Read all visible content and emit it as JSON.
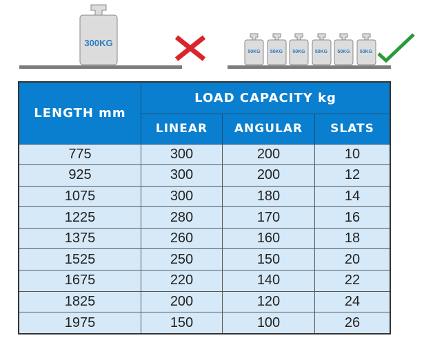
{
  "illustration": {
    "wrong": {
      "weight_label": "300KG",
      "mark": "cross-icon",
      "color": "#d9262a"
    },
    "right": {
      "weight_labels": [
        "50KG",
        "50KG",
        "50KG",
        "50KG",
        "50KG",
        "50KG"
      ],
      "mark": "check-icon",
      "color": "#2a9a3a"
    }
  },
  "table": {
    "header_bg": "#0a7fcf",
    "row_bg": "#d6e9f8",
    "length_header": "LENGTH mm",
    "group_header": "LOAD CAPACITY kg",
    "sub_headers": [
      "LINEAR",
      "ANGULAR",
      "SLATS"
    ],
    "rows": [
      [
        "775",
        "300",
        "200",
        "10"
      ],
      [
        "925",
        "300",
        "200",
        "12"
      ],
      [
        "1075",
        "300",
        "180",
        "14"
      ],
      [
        "1225",
        "280",
        "170",
        "16"
      ],
      [
        "1375",
        "260",
        "160",
        "18"
      ],
      [
        "1525",
        "250",
        "150",
        "20"
      ],
      [
        "1675",
        "220",
        "140",
        "22"
      ],
      [
        "1825",
        "200",
        "120",
        "24"
      ],
      [
        "1975",
        "150",
        "100",
        "26"
      ]
    ]
  }
}
